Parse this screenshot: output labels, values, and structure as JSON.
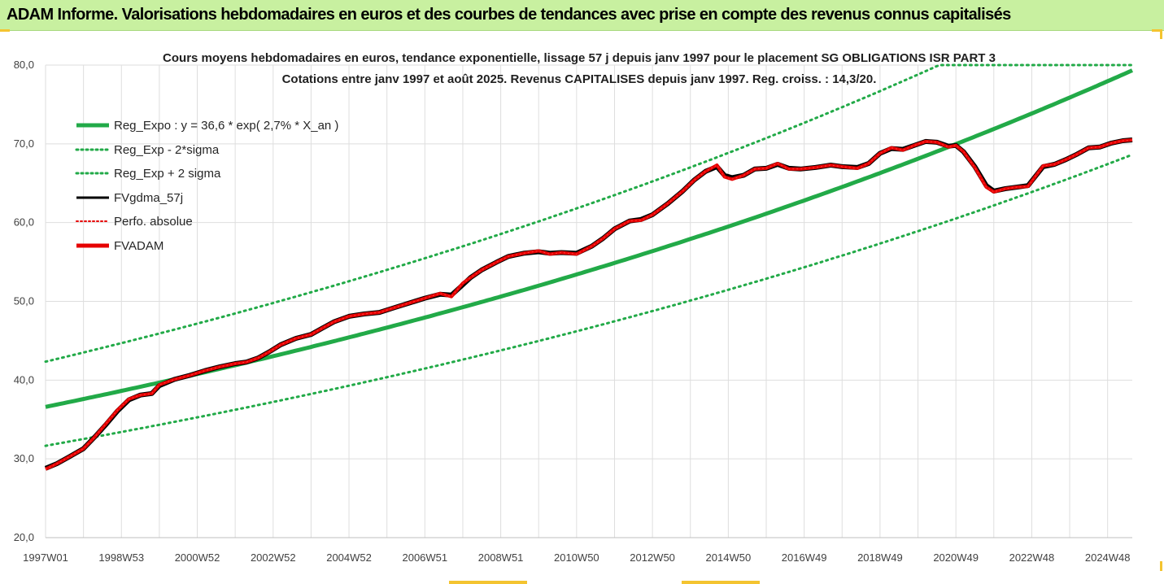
{
  "header": {
    "title": "ADAM Informe. Valorisations hebdomadaires en euros et des courbes de tendances avec prise en compte des revenus connus capitalisés"
  },
  "colors": {
    "header_bg": "#c8f0a0",
    "reg_green": "#22aa48",
    "sigma_green": "#22aa48",
    "fv_black": "#000000",
    "adam_red": "#e60000",
    "grid": "#dedede",
    "accent_yellow": "#f4c430"
  },
  "chart_data": {
    "type": "line",
    "title": [
      "Cours moyens hebdomadaires en euros, tendance exponentielle, lissage 57 j depuis janv 1997 pour le placement SG OBLIGATIONS ISR PART 3",
      "Cotations entre janv 1997 et août 2025. Revenus CAPITALISES depuis janv 1997. Reg. croiss. : 14,3/20."
    ],
    "xlabel": "",
    "ylabel": "",
    "x_tick_labels": [
      "1997W01",
      "1998W53",
      "2000W52",
      "2002W52",
      "2004W52",
      "2006W51",
      "2008W51",
      "2010W50",
      "2012W50",
      "2014W50",
      "2016W49",
      "2018W49",
      "2020W49",
      "2022W48",
      "2024W48"
    ],
    "x_tick_years": [
      1997.0,
      1999.0,
      2001.0,
      2003.0,
      2005.0,
      2007.0,
      2009.0,
      2011.0,
      2013.0,
      2015.0,
      2017.0,
      2019.0,
      2021.0,
      2023.0,
      2025.0
    ],
    "x_range": [
      1997.0,
      2025.65
    ],
    "y_ticks": [
      "20,0",
      "30,0",
      "40,0",
      "50,0",
      "60,0",
      "70,0",
      "80,0"
    ],
    "ylim": [
      20,
      80
    ],
    "grid": true,
    "legend_position": "top-left",
    "regression": {
      "a": 36.6,
      "growth_rate": 0.027
    },
    "series": [
      {
        "name": "Reg_Expo : y = 36,6 * exp( 2,7% *  X_an )",
        "style": "solid-thick",
        "color": "#22aa48",
        "kind": "reg",
        "factor": 1.0
      },
      {
        "name": "Reg_Exp - 2*sigma",
        "style": "dotted",
        "color": "#22aa48",
        "kind": "reg",
        "factor": 0.865
      },
      {
        "name": "Reg_Exp + 2 sigma",
        "style": "dotted",
        "color": "#22aa48",
        "kind": "reg",
        "factor": 1.157,
        "cap": 80
      },
      {
        "name": "FVgdma_57j",
        "style": "solid",
        "color": "#000000",
        "kind": "data"
      },
      {
        "name": "Perfo. absolue",
        "style": "dotted",
        "color": "#e60000",
        "kind": "data"
      },
      {
        "name": "FVADAM",
        "style": "solid-thick",
        "color": "#e60000",
        "kind": "data"
      }
    ],
    "x": [
      1997.0,
      1997.3,
      1997.6,
      1998.0,
      1998.3,
      1998.6,
      1998.9,
      1999.2,
      1999.5,
      1999.8,
      2000.0,
      2000.4,
      2000.8,
      2001.2,
      2001.6,
      2002.0,
      2002.3,
      2002.6,
      2002.9,
      2003.2,
      2003.6,
      2004.0,
      2004.3,
      2004.6,
      2005.0,
      2005.4,
      2005.8,
      2006.2,
      2006.6,
      2007.0,
      2007.4,
      2007.7,
      2008.0,
      2008.2,
      2008.5,
      2008.9,
      2009.2,
      2009.6,
      2010.0,
      2010.3,
      2010.6,
      2011.0,
      2011.4,
      2011.7,
      2012.0,
      2012.4,
      2012.7,
      2013.0,
      2013.4,
      2013.8,
      2014.1,
      2014.4,
      2014.7,
      2014.9,
      2015.1,
      2015.4,
      2015.7,
      2016.0,
      2016.3,
      2016.6,
      2016.9,
      2017.3,
      2017.7,
      2018.0,
      2018.4,
      2018.7,
      2019.0,
      2019.3,
      2019.6,
      2019.9,
      2020.2,
      2020.5,
      2020.8,
      2021.0,
      2021.2,
      2021.5,
      2021.8,
      2022.0,
      2022.3,
      2022.6,
      2022.9,
      2023.3,
      2023.6,
      2023.9,
      2024.2,
      2024.5,
      2024.8,
      2025.1,
      2025.4,
      2025.65
    ],
    "fvadam": [
      28.7,
      29.4,
      30.2,
      31.3,
      32.8,
      34.5,
      36.2,
      37.6,
      38.1,
      38.3,
      39.4,
      40.1,
      40.6,
      41.2,
      41.7,
      42.1,
      42.3,
      42.8,
      43.6,
      44.5,
      45.3,
      45.8,
      46.6,
      47.4,
      48.1,
      48.4,
      48.6,
      49.2,
      49.8,
      50.4,
      51.0,
      50.6,
      52.3,
      53.0,
      54.0,
      55.0,
      55.7,
      56.1,
      56.4,
      56.0,
      56.2,
      56.0,
      57.0,
      58.0,
      59.2,
      60.2,
      60.3,
      61.0,
      62.4,
      64.0,
      65.4,
      66.5,
      67.3,
      65.8,
      65.5,
      66.0,
      66.8,
      66.9,
      67.5,
      66.8,
      66.8,
      67.0,
      67.3,
      67.1,
      66.9,
      67.5,
      68.8,
      69.5,
      69.2,
      69.8,
      70.3,
      70.2,
      69.6,
      69.8,
      69.0,
      67.0,
      64.5,
      63.9,
      64.3,
      64.5,
      64.6,
      67.2,
      67.4,
      68.0,
      68.7,
      69.5,
      69.6,
      70.1,
      70.4,
      70.5
    ],
    "fvgdma": [
      28.8,
      29.4,
      30.2,
      31.3,
      32.8,
      34.4,
      36.1,
      37.5,
      38.1,
      38.3,
      39.3,
      40.1,
      40.6,
      41.2,
      41.7,
      42.1,
      42.3,
      42.8,
      43.6,
      44.5,
      45.3,
      45.8,
      46.6,
      47.4,
      48.1,
      48.4,
      48.6,
      49.2,
      49.8,
      50.4,
      50.9,
      50.8,
      52.1,
      53.0,
      54.0,
      55.0,
      55.7,
      56.1,
      56.3,
      56.1,
      56.2,
      56.1,
      57.0,
      58.0,
      59.2,
      60.2,
      60.4,
      61.0,
      62.4,
      64.0,
      65.4,
      66.5,
      67.1,
      66.0,
      65.7,
      66.0,
      66.8,
      66.9,
      67.4,
      66.9,
      66.8,
      67.0,
      67.3,
      67.1,
      67.0,
      67.5,
      68.8,
      69.4,
      69.3,
      69.8,
      70.3,
      70.2,
      69.7,
      69.8,
      69.0,
      67.1,
      64.7,
      64.0,
      64.3,
      64.5,
      64.7,
      67.1,
      67.4,
      68.0,
      68.7,
      69.5,
      69.6,
      70.1,
      70.4,
      70.5
    ]
  }
}
